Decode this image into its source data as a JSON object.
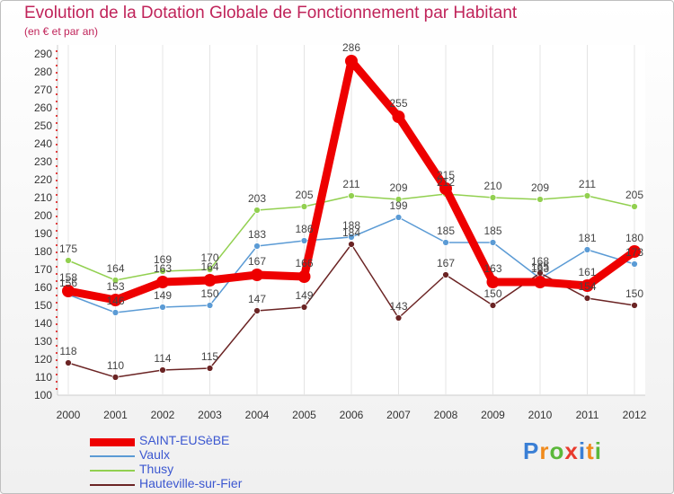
{
  "chart_data": {
    "type": "line",
    "title": "Evolution de la Dotation Globale de Fonctionnement par Habitant",
    "subtitle": "(en € et par an)",
    "x": [
      "2000",
      "2001",
      "2002",
      "2003",
      "2004",
      "2005",
      "2006",
      "2007",
      "2008",
      "2009",
      "2010",
      "2011",
      "2012"
    ],
    "ylim": [
      100,
      290
    ],
    "yticks": [
      100,
      110,
      120,
      130,
      140,
      150,
      160,
      170,
      180,
      190,
      200,
      210,
      220,
      230,
      240,
      250,
      260,
      270,
      280,
      290
    ],
    "series": [
      {
        "name": "SAINT-EUSèBE",
        "color": "#ee0000",
        "values": [
          158,
          153,
          163,
          164,
          167,
          166,
          286,
          255,
          215,
          163,
          163,
          161,
          180
        ]
      },
      {
        "name": "Vaulx",
        "color": "#5b9bd5",
        "values": [
          156,
          146,
          149,
          150,
          183,
          186,
          188,
          199,
          185,
          185,
          165,
          181,
          173
        ]
      },
      {
        "name": "Thusy",
        "color": "#92d050",
        "values": [
          175,
          164,
          169,
          170,
          203,
          205,
          211,
          209,
          212,
          210,
          209,
          211,
          205
        ]
      },
      {
        "name": "Hauteville-sur-Fier",
        "color": "#6b2424",
        "values": [
          118,
          110,
          114,
          115,
          147,
          149,
          184,
          143,
          167,
          150,
          168,
          154,
          150
        ]
      }
    ]
  },
  "logo": {
    "letters": [
      "P",
      "r",
      "o",
      "x",
      "i",
      "t",
      "i"
    ],
    "colors": [
      "#3a7fd5",
      "#f08a1c",
      "#5bb83a",
      "#e83b2e",
      "#3a7fd5",
      "#f08a1c",
      "#5bb83a"
    ]
  }
}
